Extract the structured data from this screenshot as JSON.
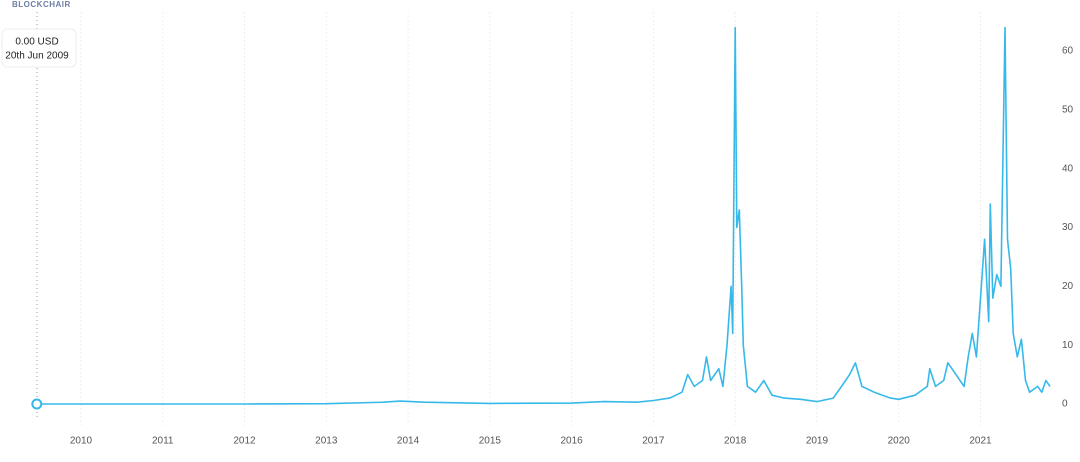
{
  "brand": "BLOCKCHAIR",
  "chart_data": {
    "type": "line",
    "tooltip": {
      "value": "0.00 USD",
      "date": "20th Jun 2009"
    },
    "x": [
      2009.46,
      2010,
      2011,
      2012,
      2013,
      2013.7,
      2013.9,
      2014.2,
      2015,
      2016,
      2016.4,
      2016.8,
      2017.0,
      2017.2,
      2017.35,
      2017.42,
      2017.5,
      2017.6,
      2017.65,
      2017.7,
      2017.8,
      2017.85,
      2017.9,
      2017.95,
      2017.97,
      2018.0,
      2018.02,
      2018.05,
      2018.08,
      2018.1,
      2018.15,
      2018.25,
      2018.35,
      2018.45,
      2018.6,
      2018.8,
      2019.0,
      2019.2,
      2019.3,
      2019.4,
      2019.47,
      2019.55,
      2019.7,
      2019.9,
      2020.0,
      2020.2,
      2020.35,
      2020.38,
      2020.45,
      2020.55,
      2020.6,
      2020.7,
      2020.8,
      2020.85,
      2020.9,
      2020.95,
      2021.0,
      2021.05,
      2021.1,
      2021.12,
      2021.15,
      2021.2,
      2021.25,
      2021.3,
      2021.33,
      2021.37,
      2021.4,
      2021.45,
      2021.5,
      2021.55,
      2021.6,
      2021.7,
      2021.75,
      2021.8,
      2021.85
    ],
    "series": [
      {
        "color": "#36b9ea",
        "values": [
          0,
          0,
          0,
          0,
          0.05,
          0.3,
          0.5,
          0.3,
          0.1,
          0.15,
          0.4,
          0.3,
          0.6,
          1,
          2,
          5,
          3,
          4,
          8,
          4,
          6,
          3,
          10,
          20,
          12,
          64,
          30,
          33,
          20,
          10,
          3,
          2,
          4,
          1.5,
          1,
          0.8,
          0.4,
          1,
          3,
          5,
          7,
          3,
          2,
          1,
          0.8,
          1.5,
          3,
          6,
          3,
          4,
          7,
          5,
          3,
          8,
          12,
          8,
          18,
          28,
          14,
          34,
          18,
          22,
          20,
          64,
          28,
          23,
          12,
          8,
          11,
          4,
          2,
          3,
          2,
          4,
          3
        ]
      }
    ],
    "xlim": [
      2009.01,
      2021.85
    ],
    "xticks": [
      2010,
      2011,
      2012,
      2013,
      2014,
      2015,
      2016,
      2017,
      2018,
      2019,
      2020,
      2021
    ],
    "ylim": [
      0,
      65
    ],
    "yticks": [
      0,
      10,
      20,
      30,
      40,
      50,
      60
    ],
    "grid": true
  }
}
